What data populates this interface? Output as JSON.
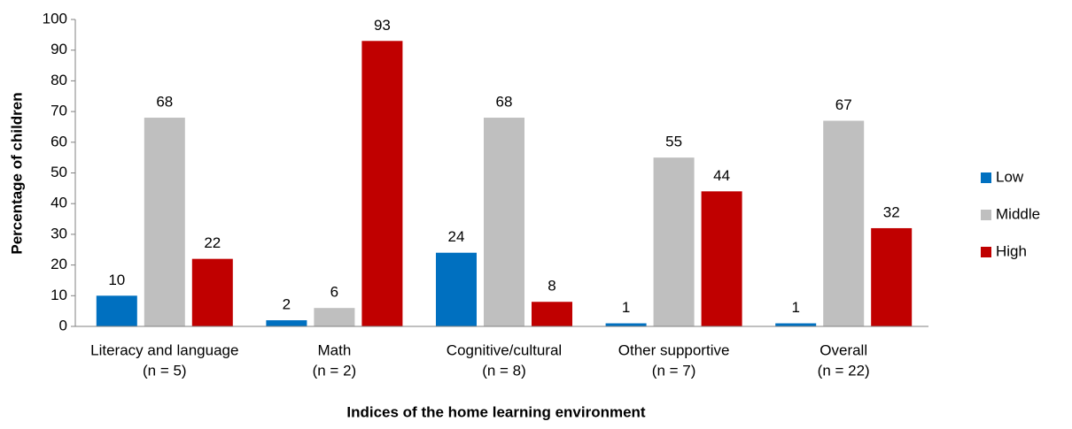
{
  "chart_data": {
    "type": "bar",
    "x_label": "Indices of the home learning environment",
    "y_label": "Percentage of children",
    "categories": [
      [
        "Literacy and language",
        "(n = 5)"
      ],
      [
        "Math",
        "(n = 2)"
      ],
      [
        "Cognitive/cultural",
        "(n = 8)"
      ],
      [
        "Other supportive",
        "(n = 7)"
      ],
      [
        "Overall",
        "(n = 22)"
      ]
    ],
    "series": [
      {
        "name": "Low",
        "color": "#0070c0",
        "values": [
          10,
          2,
          24,
          1,
          1
        ]
      },
      {
        "name": "Middle",
        "color": "#bfbfbf",
        "values": [
          68,
          6,
          68,
          55,
          67
        ]
      },
      {
        "name": "High",
        "color": "#c00000",
        "values": [
          22,
          93,
          8,
          44,
          32
        ]
      }
    ],
    "ylim": [
      0,
      100
    ],
    "yticks": [
      0,
      10,
      20,
      30,
      40,
      50,
      60,
      70,
      80,
      90,
      100
    ],
    "grid": false,
    "legend": "right"
  }
}
